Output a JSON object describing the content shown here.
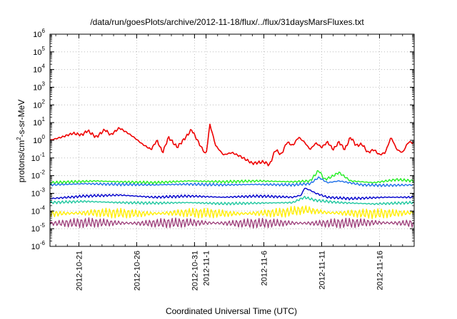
{
  "chart_data": {
    "type": "line",
    "title": "/data/run/goesPlots/archive/2012-11-18/flux/../flux/31daysMarsFluxes.txt",
    "xlabel": "Coordinated Universal Time (UTC)",
    "ylabel": "protons/cm²-s-sr-MeV",
    "ylabel_main": "protons/cm",
    "ylabel_sup": "2",
    "ylabel_rest": "-s-sr-MeV",
    "yscale": "log",
    "ylim_exp": [
      -6,
      6
    ],
    "y_ticks": [
      {
        "base": "10",
        "exp": "6",
        "value": 1000000
      },
      {
        "base": "10",
        "exp": "5",
        "value": 100000
      },
      {
        "base": "10",
        "exp": "4",
        "value": 10000
      },
      {
        "base": "10",
        "exp": "3",
        "value": 1000
      },
      {
        "base": "10",
        "exp": "2",
        "value": 100
      },
      {
        "base": "10",
        "exp": "1",
        "value": 10
      },
      {
        "base": "10",
        "exp": "0",
        "value": 1
      },
      {
        "base": "10",
        "exp": "-1",
        "value": 0.1
      },
      {
        "base": "10",
        "exp": "-2",
        "value": 0.01
      },
      {
        "base": "10",
        "exp": "-3",
        "value": 0.001
      },
      {
        "base": "10",
        "exp": "-4",
        "value": 0.0001
      },
      {
        "base": "10",
        "exp": "-5",
        "value": 1e-05
      },
      {
        "base": "10",
        "exp": "-6",
        "value": 1e-06
      }
    ],
    "xlim": [
      "2012-10-18T12:00",
      "2012-11-18T24:00"
    ],
    "x_ticks": [
      {
        "label": "2012-10-21",
        "date": "2012-10-21T00:00"
      },
      {
        "label": "2012-10-26",
        "date": "2012-10-26T00:00"
      },
      {
        "label": "2012-10-31",
        "date": "2012-10-31T00:00"
      },
      {
        "label": "2012-11-1",
        "date": "2012-11-01T00:00"
      },
      {
        "label": "2012-11-6",
        "date": "2012-11-06T00:00"
      },
      {
        "label": "2012-11-11",
        "date": "2012-11-11T00:00"
      },
      {
        "label": "2012-11-16",
        "date": "2012-11-16T00:00"
      }
    ],
    "grid": true,
    "legend": "none",
    "series": [
      {
        "color": "#ee0000",
        "width": 1.6,
        "points": [
          [
            "2012-10-18T12:00",
            1.0
          ],
          [
            "2012-10-19T12:00",
            1.5
          ],
          [
            "2012-10-20T12:00",
            2.5
          ],
          [
            "2012-10-21T06:00",
            2.0
          ],
          [
            "2012-10-21T18:00",
            3.5
          ],
          [
            "2012-10-22T12:00",
            1.5
          ],
          [
            "2012-10-23T06:00",
            4.0
          ],
          [
            "2012-10-23T18:00",
            2.0
          ],
          [
            "2012-10-24T12:00",
            5.0
          ],
          [
            "2012-10-25T06:00",
            2.5
          ],
          [
            "2012-10-25T18:00",
            1.5
          ],
          [
            "2012-10-26T12:00",
            0.6
          ],
          [
            "2012-10-27T06:00",
            0.3
          ],
          [
            "2012-10-27T18:00",
            1.0
          ],
          [
            "2012-10-28T06:00",
            0.2
          ],
          [
            "2012-10-28T18:00",
            1.5
          ],
          [
            "2012-10-29T12:00",
            0.4
          ],
          [
            "2012-10-30T06:00",
            1.5
          ],
          [
            "2012-10-30T18:00",
            4.0
          ],
          [
            "2012-10-31T12:00",
            0.5
          ],
          [
            "2012-11-01T00:00",
            0.15
          ],
          [
            "2012-11-01T08:00",
            8.0
          ],
          [
            "2012-11-01T20:00",
            0.5
          ],
          [
            "2012-11-02T12:00",
            0.15
          ],
          [
            "2012-11-03T06:00",
            0.2
          ],
          [
            "2012-11-04T00:00",
            0.12
          ],
          [
            "2012-11-05T00:00",
            0.05
          ],
          [
            "2012-11-06T00:00",
            0.06
          ],
          [
            "2012-11-06T12:00",
            0.04
          ],
          [
            "2012-11-07T00:00",
            0.3
          ],
          [
            "2012-11-07T12:00",
            0.15
          ],
          [
            "2012-11-08T00:00",
            0.8
          ],
          [
            "2012-11-08T12:00",
            0.5
          ],
          [
            "2012-11-09T00:00",
            1.5
          ],
          [
            "2012-11-09T12:00",
            0.8
          ],
          [
            "2012-11-10T00:00",
            0.3
          ],
          [
            "2012-11-10T12:00",
            0.7
          ],
          [
            "2012-11-11T00:00",
            0.4
          ],
          [
            "2012-11-11T12:00",
            0.8
          ],
          [
            "2012-11-12T00:00",
            0.3
          ],
          [
            "2012-11-12T12:00",
            0.8
          ],
          [
            "2012-11-13T00:00",
            0.3
          ],
          [
            "2012-11-13T12:00",
            1.5
          ],
          [
            "2012-11-14T00:00",
            0.5
          ],
          [
            "2012-11-14T12:00",
            0.6
          ],
          [
            "2012-11-15T00:00",
            0.2
          ],
          [
            "2012-11-15T12:00",
            0.3
          ],
          [
            "2012-11-16T00:00",
            0.15
          ],
          [
            "2012-11-16T12:00",
            0.2
          ],
          [
            "2012-11-17T00:00",
            1.5
          ],
          [
            "2012-11-17T12:00",
            0.3
          ],
          [
            "2012-11-18T00:00",
            0.2
          ],
          [
            "2012-11-18T12:00",
            0.8
          ],
          [
            "2012-11-18T24:00",
            0.7
          ]
        ]
      },
      {
        "color": "#22ee22",
        "width": 1.4,
        "points": [
          [
            "2012-10-18T12:00",
            0.004
          ],
          [
            "2012-10-20T12:00",
            0.0045
          ],
          [
            "2012-10-22T12:00",
            0.005
          ],
          [
            "2012-10-24T12:00",
            0.0045
          ],
          [
            "2012-10-27T12:00",
            0.004
          ],
          [
            "2012-10-30T12:00",
            0.005
          ],
          [
            "2012-11-02T12:00",
            0.0045
          ],
          [
            "2012-11-05T12:00",
            0.005
          ],
          [
            "2012-11-08T12:00",
            0.0045
          ],
          [
            "2012-11-10T00:00",
            0.005
          ],
          [
            "2012-11-10T18:00",
            0.02
          ],
          [
            "2012-11-11T06:00",
            0.006
          ],
          [
            "2012-11-11T18:00",
            0.008
          ],
          [
            "2012-11-12T12:00",
            0.015
          ],
          [
            "2012-11-13T12:00",
            0.005
          ],
          [
            "2012-11-15T12:00",
            0.004
          ],
          [
            "2012-11-17T12:00",
            0.006
          ],
          [
            "2012-11-18T24:00",
            0.005
          ]
        ]
      },
      {
        "color": "#1e6fe8",
        "width": 1.4,
        "points": [
          [
            "2012-10-18T12:00",
            0.003
          ],
          [
            "2012-10-21T12:00",
            0.0035
          ],
          [
            "2012-10-24T12:00",
            0.0032
          ],
          [
            "2012-10-27T12:00",
            0.003
          ],
          [
            "2012-10-30T12:00",
            0.0033
          ],
          [
            "2012-11-02T12:00",
            0.003
          ],
          [
            "2012-11-05T12:00",
            0.0032
          ],
          [
            "2012-11-08T12:00",
            0.003
          ],
          [
            "2012-11-10T00:00",
            0.0035
          ],
          [
            "2012-11-10T18:00",
            0.008
          ],
          [
            "2012-11-11T12:00",
            0.004
          ],
          [
            "2012-11-12T12:00",
            0.005
          ],
          [
            "2012-11-14T12:00",
            0.003
          ],
          [
            "2012-11-16T12:00",
            0.0028
          ],
          [
            "2012-11-18T24:00",
            0.003
          ]
        ]
      },
      {
        "color": "#0000cc",
        "width": 1.4,
        "points": [
          [
            "2012-10-18T12:00",
            0.0005
          ],
          [
            "2012-10-21T12:00",
            0.0007
          ],
          [
            "2012-10-24T12:00",
            0.0008
          ],
          [
            "2012-10-27T12:00",
            0.0006
          ],
          [
            "2012-10-30T12:00",
            0.0007
          ],
          [
            "2012-11-02T12:00",
            0.0006
          ],
          [
            "2012-11-05T12:00",
            0.0007
          ],
          [
            "2012-11-08T12:00",
            0.0006
          ],
          [
            "2012-11-09T06:00",
            0.0008
          ],
          [
            "2012-11-09T12:00",
            0.002
          ],
          [
            "2012-11-10T00:00",
            0.0015
          ],
          [
            "2012-11-10T12:00",
            0.001
          ],
          [
            "2012-11-11T12:00",
            0.0006
          ],
          [
            "2012-11-13T12:00",
            0.0005
          ],
          [
            "2012-11-16T12:00",
            0.0006
          ],
          [
            "2012-11-18T24:00",
            0.0006
          ]
        ]
      },
      {
        "color": "#20c8a0",
        "width": 1.4,
        "points": [
          [
            "2012-10-18T12:00",
            0.0003
          ],
          [
            "2012-10-21T12:00",
            0.00035
          ],
          [
            "2012-10-24T12:00",
            0.0003
          ],
          [
            "2012-10-27T12:00",
            0.00028
          ],
          [
            "2012-10-30T12:00",
            0.0003
          ],
          [
            "2012-11-02T12:00",
            0.00026
          ],
          [
            "2012-11-05T12:00",
            0.00028
          ],
          [
            "2012-11-08T12:00",
            0.0003
          ],
          [
            "2012-11-09T12:00",
            0.0006
          ],
          [
            "2012-11-10T12:00",
            0.0004
          ],
          [
            "2012-11-12T12:00",
            0.0003
          ],
          [
            "2012-11-15T12:00",
            0.00025
          ],
          [
            "2012-11-18T24:00",
            0.0003
          ]
        ]
      },
      {
        "color": "#ffee00",
        "width": 1.4,
        "points": [
          [
            "2012-10-18T12:00",
            7e-05
          ],
          [
            "2012-10-22T12:00",
            8e-05
          ],
          [
            "2012-10-26T12:00",
            7e-05
          ],
          [
            "2012-10-30T12:00",
            8e-05
          ],
          [
            "2012-11-03T12:00",
            7e-05
          ],
          [
            "2012-11-07T12:00",
            8e-05
          ],
          [
            "2012-11-09T12:00",
            0.00012
          ],
          [
            "2012-11-11T12:00",
            8e-05
          ],
          [
            "2012-11-15T12:00",
            7e-05
          ],
          [
            "2012-11-18T24:00",
            8e-05
          ]
        ]
      },
      {
        "color": "#9b3c78",
        "width": 1.3,
        "points": [
          [
            "2012-10-18T12:00",
            2e-05
          ],
          [
            "2012-10-22T12:00",
            2.2e-05
          ],
          [
            "2012-10-26T12:00",
            2e-05
          ],
          [
            "2012-10-30T12:00",
            2.2e-05
          ],
          [
            "2012-11-03T12:00",
            2e-05
          ],
          [
            "2012-11-07T12:00",
            2.1e-05
          ],
          [
            "2012-11-11T12:00",
            2e-05
          ],
          [
            "2012-11-15T12:00",
            2.2e-05
          ],
          [
            "2012-11-18T24:00",
            2e-05
          ]
        ]
      }
    ]
  }
}
